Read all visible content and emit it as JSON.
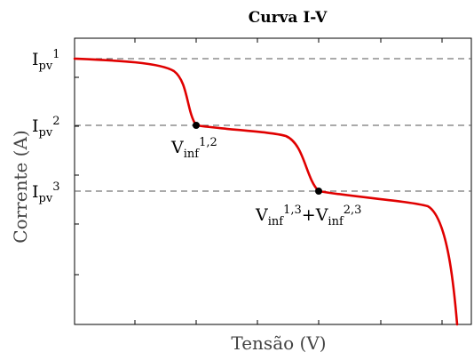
{
  "chart_data": {
    "type": "line",
    "title": "Curva I-V",
    "xlabel": "Tensão (V)",
    "ylabel": "Corrente (A)",
    "grid": false,
    "curve_color": "#e00000",
    "reference_line_color": "#555555",
    "reference_lines": [
      {
        "base": "I",
        "sub": "pv",
        "sup": "1"
      },
      {
        "base": "I",
        "sub": "pv",
        "sup": "2"
      },
      {
        "base": "I",
        "sub": "pv",
        "sup": "3"
      }
    ],
    "inflection_points": [
      {
        "terms": [
          {
            "base": "V",
            "sub": "inf",
            "sup": "1,2"
          }
        ]
      },
      {
        "terms": [
          {
            "base": "V",
            "sub": "inf",
            "sup": "1,3"
          },
          {
            "base": "V",
            "sub": "inf",
            "sup": "2,3"
          }
        ],
        "joiner": "+"
      }
    ]
  }
}
